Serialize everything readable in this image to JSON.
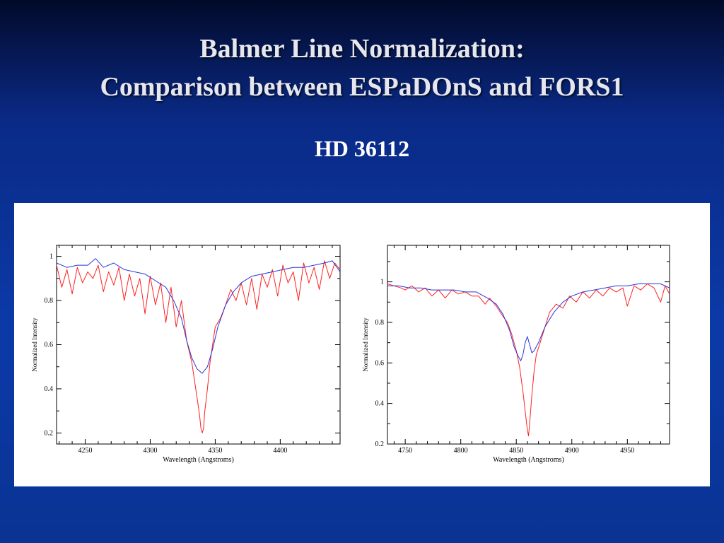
{
  "slide": {
    "title_line1": "Balmer Line Normalization:",
    "title_line2": "Comparison between ESPaDOnS and FORS1",
    "subtitle": "HD 36112"
  },
  "colors": {
    "espadons": "#ff2020",
    "fors1": "#2b35d8"
  },
  "chart_data": [
    {
      "type": "line",
      "xlabel": "Wavelength (Angstroms)",
      "ylabel": "Normalized Intensity",
      "xlim": [
        4228,
        4446
      ],
      "ylim": [
        0.15,
        1.05
      ],
      "xticks": [
        4250,
        4300,
        4350,
        4400
      ],
      "yticks": [
        0.2,
        0.4,
        0.6,
        0.8,
        1
      ],
      "ytick_labels": [
        "0.2",
        "0.4",
        "0.6",
        "0.8",
        "1"
      ],
      "line_center": 4340,
      "series": [
        {
          "color": "red",
          "x": [
            4228,
            4232,
            4236,
            4240,
            4244,
            4248,
            4252,
            4256,
            4260,
            4264,
            4268,
            4272,
            4276,
            4280,
            4284,
            4288,
            4292,
            4296,
            4300,
            4304,
            4308,
            4312,
            4316,
            4320,
            4324,
            4328,
            4332,
            4334,
            4336,
            4338,
            4339,
            4340,
            4341,
            4342,
            4344,
            4346,
            4348,
            4350,
            4354,
            4358,
            4362,
            4366,
            4370,
            4374,
            4378,
            4382,
            4386,
            4390,
            4394,
            4398,
            4402,
            4406,
            4410,
            4414,
            4418,
            4422,
            4426,
            4430,
            4434,
            4438,
            4442,
            4446
          ],
          "y": [
            0.96,
            0.86,
            0.94,
            0.83,
            0.95,
            0.88,
            0.93,
            0.9,
            0.96,
            0.84,
            0.93,
            0.87,
            0.95,
            0.8,
            0.92,
            0.82,
            0.9,
            0.74,
            0.91,
            0.78,
            0.88,
            0.7,
            0.86,
            0.68,
            0.8,
            0.62,
            0.52,
            0.44,
            0.36,
            0.28,
            0.22,
            0.2,
            0.22,
            0.3,
            0.4,
            0.52,
            0.6,
            0.68,
            0.72,
            0.78,
            0.85,
            0.8,
            0.88,
            0.78,
            0.9,
            0.76,
            0.92,
            0.86,
            0.94,
            0.82,
            0.96,
            0.88,
            0.93,
            0.8,
            0.97,
            0.88,
            0.95,
            0.85,
            0.98,
            0.9,
            0.97,
            0.94
          ]
        },
        {
          "color": "blue",
          "x": [
            4228,
            4236,
            4244,
            4252,
            4258,
            4264,
            4272,
            4280,
            4288,
            4296,
            4304,
            4312,
            4318,
            4324,
            4328,
            4332,
            4336,
            4340,
            4344,
            4348,
            4352,
            4358,
            4364,
            4370,
            4378,
            4386,
            4394,
            4402,
            4410,
            4418,
            4426,
            4434,
            4440,
            4446
          ],
          "y": [
            0.97,
            0.95,
            0.96,
            0.96,
            0.99,
            0.95,
            0.97,
            0.94,
            0.93,
            0.92,
            0.89,
            0.86,
            0.8,
            0.72,
            0.62,
            0.54,
            0.49,
            0.47,
            0.5,
            0.58,
            0.68,
            0.78,
            0.84,
            0.88,
            0.91,
            0.92,
            0.93,
            0.94,
            0.95,
            0.95,
            0.96,
            0.97,
            0.98,
            0.93
          ]
        }
      ]
    },
    {
      "type": "line",
      "xlabel": "Wavelength (Angstroms)",
      "ylabel": "Normalized Intensity",
      "xlim": [
        4734,
        4988
      ],
      "ylim": [
        0.2,
        1.18
      ],
      "xticks": [
        4750,
        4800,
        4850,
        4900,
        4950
      ],
      "yticks": [
        0.2,
        0.4,
        0.6,
        0.8,
        1
      ],
      "ytick_labels": [
        "0.2",
        "0.4",
        "0.6",
        "0.8",
        "1"
      ],
      "line_center": 4861,
      "series": [
        {
          "color": "red",
          "x": [
            4734,
            4740,
            4746,
            4750,
            4756,
            4762,
            4768,
            4774,
            4780,
            4786,
            4792,
            4798,
            4804,
            4810,
            4816,
            4822,
            4826,
            4832,
            4838,
            4842,
            4846,
            4850,
            4853,
            4856,
            4858,
            4860,
            4861,
            4862,
            4864,
            4866,
            4868,
            4872,
            4876,
            4880,
            4886,
            4892,
            4898,
            4904,
            4910,
            4916,
            4922,
            4928,
            4934,
            4940,
            4946,
            4950,
            4956,
            4962,
            4968,
            4974,
            4980,
            4984,
            4988
          ],
          "y": [
            0.99,
            0.98,
            0.97,
            0.96,
            0.98,
            0.95,
            0.97,
            0.93,
            0.96,
            0.92,
            0.96,
            0.94,
            0.95,
            0.93,
            0.93,
            0.89,
            0.92,
            0.88,
            0.83,
            0.8,
            0.74,
            0.66,
            0.58,
            0.46,
            0.36,
            0.27,
            0.24,
            0.3,
            0.44,
            0.56,
            0.64,
            0.71,
            0.78,
            0.85,
            0.89,
            0.87,
            0.93,
            0.9,
            0.95,
            0.92,
            0.96,
            0.93,
            0.97,
            0.95,
            0.97,
            0.88,
            0.98,
            0.96,
            0.99,
            0.97,
            0.9,
            0.98,
            0.94
          ]
        },
        {
          "color": "blue",
          "x": [
            4734,
            4744,
            4754,
            4764,
            4774,
            4784,
            4794,
            4804,
            4814,
            4824,
            4832,
            4838,
            4844,
            4848,
            4852,
            4854,
            4856,
            4858,
            4860,
            4862,
            4864,
            4866,
            4870,
            4876,
            4884,
            4892,
            4900,
            4910,
            4920,
            4930,
            4940,
            4950,
            4960,
            4970,
            4980,
            4988
          ],
          "y": [
            0.98,
            0.98,
            0.97,
            0.97,
            0.96,
            0.96,
            0.96,
            0.95,
            0.95,
            0.92,
            0.89,
            0.84,
            0.76,
            0.68,
            0.63,
            0.61,
            0.64,
            0.7,
            0.73,
            0.69,
            0.65,
            0.66,
            0.7,
            0.78,
            0.85,
            0.9,
            0.93,
            0.95,
            0.96,
            0.97,
            0.98,
            0.98,
            0.99,
            0.99,
            0.99,
            0.97
          ]
        }
      ]
    }
  ]
}
